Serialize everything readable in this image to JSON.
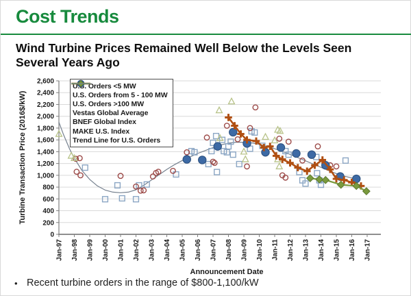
{
  "slide": {
    "title": "Cost Trends",
    "subtitle_lines": [
      "Wind Turbine Prices Remained Well Below the Levels Seen",
      "Several Years Ago"
    ],
    "bullet_glyph": "•",
    "bullet": "Recent turbine orders in the range of $800-1,100/kW",
    "accent_green": "#178a3d"
  },
  "chart_data": {
    "type": "scatter",
    "xlabel": "Announcement Date",
    "ylabel": "Turbine Transaction Price (2016$/kW)",
    "x_ticks": [
      "Jan-97",
      "Jan-98",
      "Jan-99",
      "Jan-00",
      "Jan-01",
      "Jan-02",
      "Jan-03",
      "Jan-04",
      "Jan-05",
      "Jan-06",
      "Jan-07",
      "Jan-08",
      "Jan-09",
      "Jan-10",
      "Jan-11",
      "Jan-12",
      "Jan-13",
      "Jan-14",
      "Jan-15",
      "Jan-16",
      "Jan-17"
    ],
    "y_ticks": [
      "0",
      "200",
      "400",
      "600",
      "800",
      "1,000",
      "1,200",
      "1,400",
      "1,600",
      "1,800",
      "2,000",
      "2,200",
      "2,400",
      "2,600"
    ],
    "ylim": [
      0,
      2600
    ],
    "y_tick_step": 200,
    "grid": "horizontal",
    "legend_position": "top-left",
    "colors": {
      "grid": "#d9d9d9",
      "axis": "#7f7f7f",
      "text": "#1a1a1a"
    },
    "series": [
      {
        "name": "U.S. Orders <5 MW",
        "style": "scatter",
        "marker": "triangle",
        "color": "#b8c389",
        "points": [
          [
            1997.0,
            1700
          ],
          [
            1997.8,
            1330
          ],
          [
            1998.0,
            1290
          ],
          [
            2007.4,
            2100
          ],
          [
            2007.45,
            1630
          ],
          [
            2008.2,
            2250
          ],
          [
            2009.0,
            1400
          ],
          [
            2009.1,
            1270
          ],
          [
            2010.4,
            1650
          ],
          [
            2011.0,
            1590
          ],
          [
            2011.2,
            1770
          ],
          [
            2011.35,
            1750
          ],
          [
            2011.2,
            1270
          ],
          [
            2011.3,
            1150
          ]
        ]
      },
      {
        "name": "U.S. Orders from 5 - 100 MW",
        "style": "scatter",
        "marker": "circle",
        "color": "#9c4a48",
        "points": [
          [
            1998.1,
            1280
          ],
          [
            1998.35,
            1290
          ],
          [
            1998.15,
            1060
          ],
          [
            1998.4,
            1000
          ],
          [
            2001.0,
            990
          ],
          [
            2002.0,
            810
          ],
          [
            2002.3,
            740
          ],
          [
            2002.5,
            745
          ],
          [
            2003.1,
            980
          ],
          [
            2003.3,
            1040
          ],
          [
            2003.45,
            1060
          ],
          [
            2004.4,
            1075
          ],
          [
            2005.3,
            1390
          ],
          [
            2006.6,
            1640
          ],
          [
            2007.0,
            1230
          ],
          [
            2007.1,
            1210
          ],
          [
            2007.9,
            1840
          ],
          [
            2008.6,
            1610
          ],
          [
            2009.2,
            1150
          ],
          [
            2009.4,
            1800
          ],
          [
            2009.75,
            2150
          ],
          [
            2011.3,
            1620
          ],
          [
            2011.9,
            1570
          ],
          [
            2011.5,
            1000
          ],
          [
            2011.7,
            960
          ],
          [
            2012.8,
            1250
          ],
          [
            2013.8,
            1490
          ],
          [
            2014.6,
            1170
          ],
          [
            2015.0,
            1150
          ]
        ]
      },
      {
        "name": "U.S. Orders >100 MW",
        "style": "scatter",
        "marker": "square",
        "color": "#8ba6c4",
        "points": [
          [
            1998.7,
            1130
          ],
          [
            2000.0,
            595
          ],
          [
            2000.8,
            830
          ],
          [
            2001.1,
            610
          ],
          [
            2002.0,
            595
          ],
          [
            2002.2,
            830
          ],
          [
            2002.7,
            845
          ],
          [
            2004.6,
            1015
          ],
          [
            2005.6,
            1410
          ],
          [
            2005.8,
            1390
          ],
          [
            2006.7,
            1190
          ],
          [
            2006.9,
            1410
          ],
          [
            2007.0,
            1550
          ],
          [
            2007.2,
            1665
          ],
          [
            2007.25,
            1055
          ],
          [
            2007.6,
            1600
          ],
          [
            2007.7,
            1410
          ],
          [
            2007.9,
            1390
          ],
          [
            2008.0,
            1490
          ],
          [
            2008.15,
            1570
          ],
          [
            2008.3,
            1350
          ],
          [
            2008.7,
            1190
          ],
          [
            2009.4,
            1450
          ],
          [
            2009.5,
            1745
          ],
          [
            2009.7,
            1725
          ],
          [
            2010.2,
            1500
          ],
          [
            2011.7,
            1410
          ],
          [
            2011.9,
            1350
          ],
          [
            2012.6,
            1055
          ],
          [
            2012.8,
            915
          ],
          [
            2013.0,
            860
          ],
          [
            2013.7,
            1310
          ],
          [
            2013.75,
            1035
          ],
          [
            2013.9,
            915
          ],
          [
            2014.0,
            840
          ],
          [
            2015.6,
            1250
          ]
        ]
      },
      {
        "name": "Vestas Global Average",
        "style": "scatter",
        "marker": "dot",
        "color": "#3d6aa5",
        "edge": "#2a4e7d",
        "points": [
          [
            2005.3,
            1270
          ],
          [
            2006.3,
            1260
          ],
          [
            2007.3,
            1490
          ],
          [
            2008.3,
            1730
          ],
          [
            2009.2,
            1540
          ],
          [
            2010.4,
            1390
          ],
          [
            2011.4,
            1470
          ],
          [
            2012.4,
            1370
          ],
          [
            2013.4,
            1350
          ],
          [
            2014.3,
            1170
          ],
          [
            2015.25,
            980
          ],
          [
            2016.3,
            940
          ]
        ]
      },
      {
        "name": "BNEF Global Index",
        "style": "line",
        "marker": "plus",
        "color": "#b04f12",
        "line_width": 2.6,
        "points": [
          [
            2008.0,
            1980
          ],
          [
            2008.4,
            1840
          ],
          [
            2008.8,
            1700
          ],
          [
            2009.2,
            1600
          ],
          [
            2009.8,
            1580
          ],
          [
            2010.3,
            1470
          ],
          [
            2010.7,
            1490
          ],
          [
            2011.1,
            1330
          ],
          [
            2011.5,
            1270
          ],
          [
            2012.0,
            1210
          ],
          [
            2012.5,
            1130
          ],
          [
            2013.1,
            1070
          ],
          [
            2013.6,
            1170
          ],
          [
            2014.1,
            1260
          ],
          [
            2014.6,
            1100
          ],
          [
            2015.0,
            940
          ],
          [
            2015.5,
            920
          ],
          [
            2016.0,
            880
          ],
          [
            2016.6,
            820
          ]
        ]
      },
      {
        "name": "MAKE U.S. Index",
        "style": "line",
        "marker": "diamond",
        "color": "#7a9a3d",
        "edge": "#5c792f",
        "line_width": 2.2,
        "points": [
          [
            2013.3,
            950
          ],
          [
            2013.9,
            930
          ],
          [
            2014.3,
            920
          ],
          [
            2015.3,
            840
          ],
          [
            2016.3,
            820
          ],
          [
            2016.95,
            730
          ]
        ]
      },
      {
        "name": "Trend Line for U.S. Orders",
        "style": "line",
        "marker": "none",
        "color": "#75808e",
        "line_width": 1.2,
        "points": [
          [
            1997.0,
            1900
          ],
          [
            1997.3,
            1690
          ],
          [
            1997.7,
            1440
          ],
          [
            1998.0,
            1290
          ],
          [
            1998.5,
            1080
          ],
          [
            1999.0,
            930
          ],
          [
            1999.5,
            820
          ],
          [
            2000.0,
            750
          ],
          [
            2000.5,
            715
          ],
          [
            2001.0,
            705
          ],
          [
            2001.5,
            715
          ],
          [
            2002.0,
            755
          ],
          [
            2002.5,
            830
          ],
          [
            2003.0,
            920
          ],
          [
            2003.5,
            1010
          ],
          [
            2004.0,
            1100
          ],
          [
            2004.5,
            1180
          ],
          [
            2005.0,
            1250
          ],
          [
            2005.5,
            1310
          ],
          [
            2006.0,
            1370
          ],
          [
            2006.5,
            1420
          ],
          [
            2007.0,
            1470
          ],
          [
            2007.5,
            1515
          ],
          [
            2008.0,
            1545
          ],
          [
            2008.5,
            1560
          ],
          [
            2009.0,
            1560
          ],
          [
            2009.5,
            1550
          ],
          [
            2010.0,
            1525
          ],
          [
            2010.5,
            1490
          ],
          [
            2011.0,
            1450
          ],
          [
            2011.5,
            1405
          ],
          [
            2012.0,
            1355
          ],
          [
            2012.5,
            1300
          ],
          [
            2013.0,
            1245
          ],
          [
            2013.5,
            1190
          ],
          [
            2014.0,
            1135
          ],
          [
            2014.5,
            1080
          ],
          [
            2015.0,
            1030
          ],
          [
            2015.5,
            985
          ],
          [
            2016.0,
            955
          ],
          [
            2016.4,
            940
          ]
        ]
      }
    ]
  }
}
